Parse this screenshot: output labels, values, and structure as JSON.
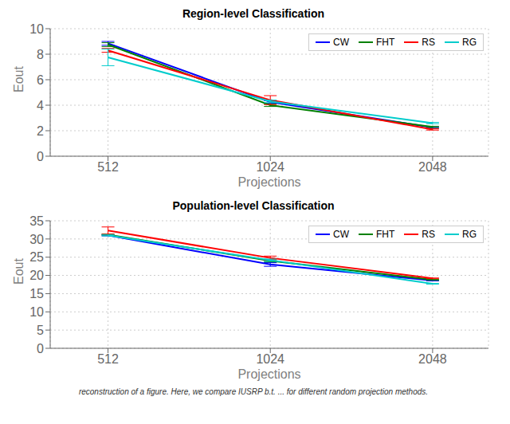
{
  "chart_data": [
    {
      "type": "line",
      "title": "Region-level Classification",
      "xlabel": "Projections",
      "ylabel": "Eout",
      "x": [
        512,
        1024,
        2048
      ],
      "xlim": [
        400,
        2600
      ],
      "xticks": [
        512,
        1024,
        2048
      ],
      "ylim": [
        0,
        10
      ],
      "yticks": [
        0,
        2,
        4,
        6,
        8,
        10
      ],
      "log": "x",
      "grid": true,
      "legend": "upper right",
      "series": [
        {
          "name": "CW",
          "color": "#0000ff",
          "values": [
            8.85,
            4.25,
            2.25
          ],
          "errors": [
            0.15,
            0.1,
            0.05
          ]
        },
        {
          "name": "FHT",
          "color": "#008000",
          "values": [
            8.75,
            4.0,
            2.3
          ],
          "errors": [
            0.15,
            0.1,
            0.05
          ]
        },
        {
          "name": "RS",
          "color": "#ff0000",
          "values": [
            8.3,
            4.4,
            2.1
          ],
          "errors": [
            0.15,
            0.35,
            0.05
          ]
        },
        {
          "name": "RG",
          "color": "#00cccc",
          "values": [
            7.75,
            4.3,
            2.6
          ],
          "errors": [
            0.65,
            0.1,
            0.05
          ]
        }
      ]
    },
    {
      "type": "line",
      "title": "Population-level Classification",
      "xlabel": "Projections",
      "ylabel": "Eout",
      "x": [
        512,
        1024,
        2048
      ],
      "xlim": [
        400,
        2600
      ],
      "xticks": [
        512,
        1024,
        2048
      ],
      "ylim": [
        0,
        35
      ],
      "yticks": [
        0,
        5,
        10,
        15,
        20,
        25,
        30,
        35
      ],
      "log": "x",
      "grid": true,
      "legend": "upper right",
      "series": [
        {
          "name": "CW",
          "color": "#0000ff",
          "values": [
            31.0,
            23.0,
            18.6
          ],
          "errors": [
            0.15,
            0.5,
            0.1
          ]
        },
        {
          "name": "FHT",
          "color": "#008000",
          "values": [
            31.2,
            24.0,
            18.8
          ],
          "errors": [
            0.15,
            0.3,
            0.1
          ]
        },
        {
          "name": "RS",
          "color": "#ff0000",
          "values": [
            32.3,
            24.8,
            19.2
          ],
          "errors": [
            1.0,
            0.5,
            0.1
          ]
        },
        {
          "name": "RG",
          "color": "#00cccc",
          "values": [
            31.0,
            24.2,
            17.7
          ],
          "errors": [
            0.15,
            0.3,
            0.1
          ]
        }
      ],
      "annotations": [
        "reconstruction of a figure. Here, we compare IUSRP b.t. ... for different random projection methods."
      ]
    }
  ]
}
